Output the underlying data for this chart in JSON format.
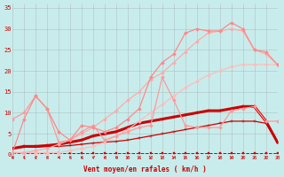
{
  "xlabel": "Vent moyen/en rafales ( km/h )",
  "xlabel_color": "#cc0000",
  "background_color": "#c8ecec",
  "grid_color": "#999999",
  "xlim": [
    0,
    23
  ],
  "ylim": [
    0,
    36
  ],
  "yticks": [
    0,
    5,
    10,
    15,
    20,
    25,
    30,
    35
  ],
  "xticks": [
    0,
    1,
    2,
    3,
    4,
    5,
    6,
    7,
    8,
    9,
    10,
    11,
    12,
    13,
    14,
    15,
    16,
    17,
    18,
    19,
    20,
    21,
    22,
    23
  ],
  "lines": [
    {
      "x": [
        0,
        1,
        2,
        3,
        4,
        5,
        6,
        7,
        8,
        9,
        10,
        11,
        12,
        13,
        14,
        15,
        16,
        17,
        18,
        19,
        20,
        21,
        22,
        23
      ],
      "y": [
        0.3,
        0.3,
        0.3,
        0.3,
        0.3,
        0.3,
        0.3,
        0.3,
        0.3,
        0.3,
        0.3,
        0.3,
        0.3,
        0.3,
        0.3,
        0.3,
        0.3,
        0.3,
        0.3,
        0.3,
        0.3,
        0.3,
        0.3,
        0.3
      ],
      "color": "#cc0000",
      "linewidth": 0.7,
      "marker": "s",
      "markersize": 1.5,
      "linestyle": "--"
    },
    {
      "x": [
        0,
        1,
        2,
        3,
        4,
        5,
        6,
        7,
        8,
        9,
        10,
        11,
        12,
        13,
        14,
        15,
        16,
        17,
        18,
        19,
        20,
        21,
        22,
        23
      ],
      "y": [
        1.5,
        1.8,
        1.8,
        2.0,
        2.0,
        2.2,
        2.5,
        2.8,
        3.0,
        3.2,
        3.5,
        4.0,
        4.5,
        5.0,
        5.5,
        6.0,
        6.5,
        7.0,
        7.5,
        8.0,
        8.0,
        8.0,
        7.5,
        3.0
      ],
      "color": "#cc0000",
      "linewidth": 0.9,
      "marker": "+",
      "markersize": 3,
      "linestyle": "-"
    },
    {
      "x": [
        0,
        1,
        2,
        3,
        4,
        5,
        6,
        7,
        8,
        9,
        10,
        11,
        12,
        13,
        14,
        15,
        16,
        17,
        18,
        19,
        20,
        21,
        22,
        23
      ],
      "y": [
        1.5,
        2.0,
        2.0,
        2.2,
        2.5,
        3.0,
        3.5,
        4.5,
        5.0,
        5.5,
        6.5,
        7.5,
        8.0,
        8.5,
        9.0,
        9.5,
        10.0,
        10.5,
        10.5,
        11.0,
        11.5,
        11.5,
        8.0,
        3.0
      ],
      "color": "#cc0000",
      "linewidth": 2.2,
      "marker": "+",
      "markersize": 3,
      "linestyle": "-"
    },
    {
      "x": [
        0,
        1,
        2,
        3,
        4,
        5,
        6,
        7,
        8,
        9,
        10,
        11,
        12,
        13,
        14,
        15,
        16,
        17,
        18,
        19,
        20,
        21,
        22,
        23
      ],
      "y": [
        0.5,
        0.5,
        0.5,
        0.5,
        0.5,
        1.0,
        1.5,
        2.0,
        3.0,
        4.5,
        6.0,
        8.0,
        10.0,
        12.0,
        14.0,
        16.0,
        17.5,
        19.0,
        20.0,
        21.0,
        21.5,
        21.5,
        21.5,
        21.5
      ],
      "color": "#ffbbbb",
      "linewidth": 0.9,
      "marker": "D",
      "markersize": 2,
      "linestyle": "-"
    },
    {
      "x": [
        0,
        1,
        2,
        3,
        4,
        5,
        6,
        7,
        8,
        9,
        10,
        11,
        12,
        13,
        14,
        15,
        16,
        17,
        18,
        19,
        20,
        21,
        22,
        23
      ],
      "y": [
        0.5,
        0.5,
        1.0,
        1.5,
        2.5,
        3.5,
        5.0,
        6.5,
        8.5,
        10.5,
        13.0,
        15.0,
        18.0,
        19.5,
        22.0,
        24.5,
        27.0,
        29.0,
        29.5,
        30.0,
        29.5,
        25.0,
        24.0,
        21.5
      ],
      "color": "#ffaaaa",
      "linewidth": 0.9,
      "marker": "D",
      "markersize": 2,
      "linestyle": "-"
    },
    {
      "x": [
        0,
        1,
        2,
        3,
        4,
        5,
        6,
        7,
        8,
        9,
        10,
        11,
        12,
        13,
        14,
        15,
        16,
        17,
        18,
        19,
        20,
        21,
        22,
        23
      ],
      "y": [
        8.5,
        10.0,
        14.0,
        11.0,
        3.0,
        3.5,
        5.5,
        7.0,
        3.5,
        4.5,
        5.5,
        6.5,
        7.0,
        18.5,
        13.0,
        7.0,
        6.5,
        6.5,
        6.5,
        10.5,
        11.0,
        11.5,
        8.0,
        8.0
      ],
      "color": "#ff9999",
      "linewidth": 0.9,
      "marker": "D",
      "markersize": 2,
      "linestyle": "-"
    },
    {
      "x": [
        0,
        1,
        2,
        3,
        4,
        5,
        6,
        7,
        8,
        9,
        10,
        11,
        12,
        13,
        14,
        15,
        16,
        17,
        18,
        19,
        20,
        21,
        22,
        23
      ],
      "y": [
        0.5,
        8.5,
        14.0,
        11.0,
        5.5,
        3.5,
        7.0,
        6.5,
        5.5,
        6.5,
        8.5,
        11.0,
        18.5,
        22.0,
        24.0,
        29.0,
        30.0,
        29.5,
        29.5,
        31.5,
        30.0,
        25.0,
        24.5,
        21.5
      ],
      "color": "#ff8888",
      "linewidth": 0.9,
      "marker": "D",
      "markersize": 2,
      "linestyle": "-"
    }
  ]
}
